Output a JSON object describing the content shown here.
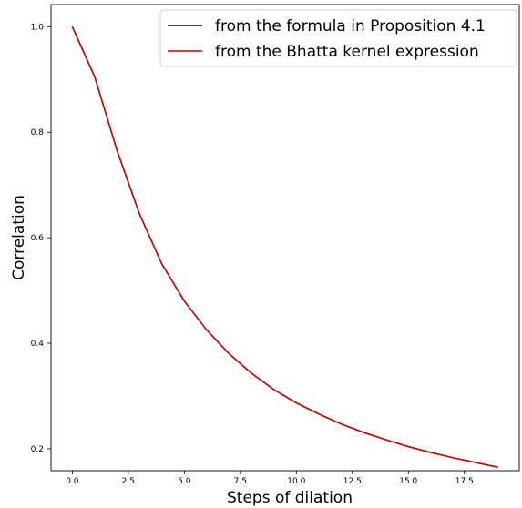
{
  "chart_data": {
    "type": "line",
    "title": "",
    "xlabel": "Steps of dilation",
    "ylabel": "Correlation",
    "xlim": [
      -0.95,
      19.95
    ],
    "ylim": [
      0.1585,
      1.042
    ],
    "x_ticks": [
      0.0,
      2.5,
      5.0,
      7.5,
      10.0,
      12.5,
      15.0,
      17.5
    ],
    "x_tick_labels": [
      "0.0",
      "2.5",
      "5.0",
      "7.5",
      "10.0",
      "12.5",
      "15.0",
      "17.5"
    ],
    "y_ticks": [
      0.2,
      0.4,
      0.6,
      0.8,
      1.0
    ],
    "y_tick_labels": [
      "0.2",
      "0.4",
      "0.6",
      "0.8",
      "1.0"
    ],
    "grid": false,
    "legend_position": "top-right",
    "x": [
      0,
      1,
      2,
      3,
      4,
      5,
      6,
      7,
      8,
      9,
      10,
      11,
      12,
      13,
      14,
      15,
      16,
      17,
      18,
      19
    ],
    "series": [
      {
        "name": "from the formula in Proposition 4.1",
        "color": "#000000",
        "values": [
          1.0,
          0.905,
          0.765,
          0.645,
          0.55,
          0.48,
          0.425,
          0.38,
          0.343,
          0.312,
          0.287,
          0.266,
          0.247,
          0.231,
          0.217,
          0.204,
          0.193,
          0.183,
          0.174,
          0.165
        ]
      },
      {
        "name": "from the Bhatta kernel expression",
        "color": "#cc0000",
        "values": [
          1.0,
          0.905,
          0.765,
          0.645,
          0.55,
          0.48,
          0.425,
          0.38,
          0.343,
          0.312,
          0.287,
          0.266,
          0.247,
          0.231,
          0.217,
          0.204,
          0.193,
          0.183,
          0.174,
          0.165
        ]
      }
    ]
  }
}
